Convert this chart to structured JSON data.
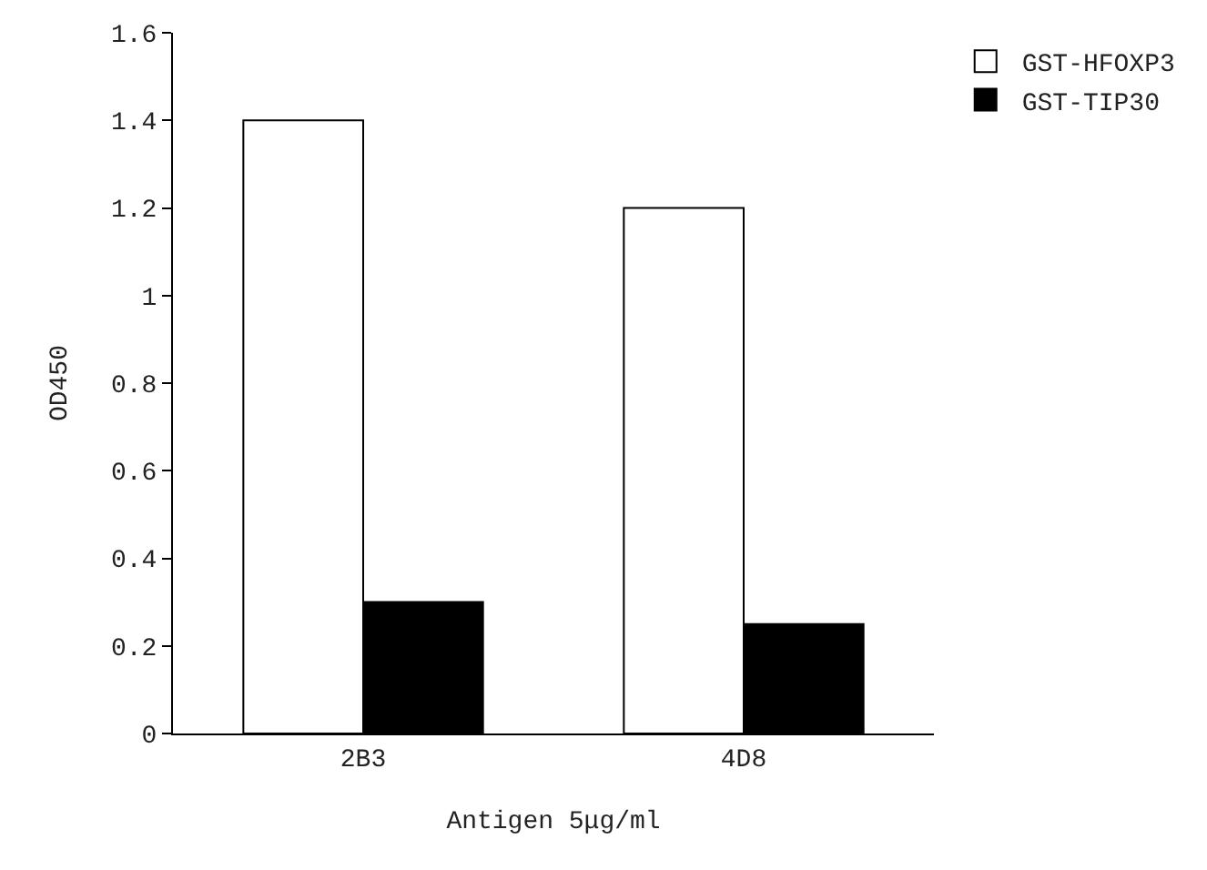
{
  "chart_data": {
    "type": "bar",
    "xlabel": "Antigen 5μg/ml",
    "ylabel": "OD450",
    "categories": [
      "2B3",
      "4D8"
    ],
    "series": [
      {
        "name": "GST-HFOXP3",
        "color": "#ffffff",
        "values": [
          1.4,
          1.2
        ]
      },
      {
        "name": "GST-TIP30",
        "color": "#000000",
        "values": [
          0.3,
          0.25
        ]
      }
    ],
    "ylim": [
      0,
      1.6
    ],
    "yticks": [
      0,
      0.2,
      0.4,
      0.6,
      0.8,
      1,
      1.2,
      1.4,
      1.6
    ],
    "grid": false,
    "legend": "top right"
  }
}
